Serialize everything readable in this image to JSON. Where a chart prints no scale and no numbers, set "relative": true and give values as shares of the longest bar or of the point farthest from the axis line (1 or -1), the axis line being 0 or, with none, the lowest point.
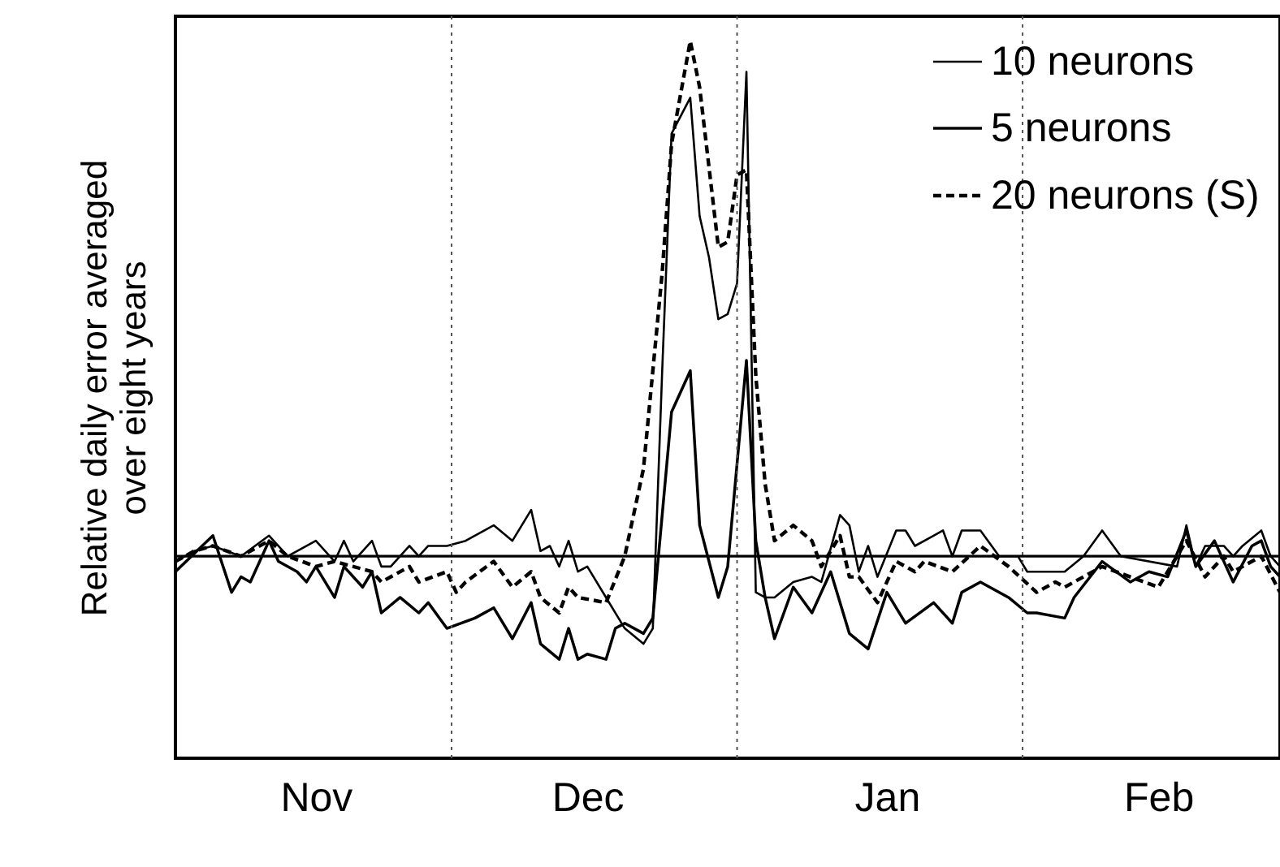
{
  "chart_data": {
    "type": "line",
    "relative": true,
    "ylabel": "Relative daily error averaged\nover eight years",
    "legend": "top right",
    "categories": [
      null,
      null,
      null,
      null,
      null,
      null,
      null,
      null,
      null,
      null,
      null,
      null,
      null,
      null,
      null,
      "Nov",
      null,
      null,
      null,
      null,
      null,
      null,
      null,
      null,
      null,
      null,
      null,
      null,
      null,
      null,
      null,
      null,
      null,
      null,
      null,
      null,
      null,
      null,
      null,
      null,
      null,
      null,
      null,
      null,
      "Dec",
      null,
      null,
      null,
      null,
      null,
      null,
      null,
      null,
      null,
      null,
      null,
      null,
      null,
      null,
      null,
      null,
      null,
      null,
      null,
      null,
      null,
      null,
      null,
      null,
      null,
      null,
      null,
      null,
      null,
      null,
      null,
      "Jan",
      null,
      null,
      null,
      null,
      null,
      null,
      null,
      null,
      null,
      null,
      null,
      null,
      null,
      null,
      null,
      null,
      null,
      null,
      null,
      null,
      null,
      null,
      null,
      null,
      null,
      null,
      null,
      null,
      "Feb",
      null,
      null,
      null,
      null,
      null,
      null,
      null,
      null,
      null,
      null,
      null,
      null,
      null
    ],
    "ref_lines": [
      {
        "axis": "y",
        "value": 0,
        "color": "#000000",
        "line_style": "solid"
      }
    ],
    "series": [
      {
        "name": "10 neurons",
        "color": "#000000",
        "line_style": "solid",
        "values": [
          -0.01,
          null,
          0.01,
          null,
          0.02,
          null,
          null,
          0.0,
          null,
          null,
          0.04,
          null,
          0.0,
          null,
          null,
          0.03,
          null,
          -0.01,
          0.03,
          -0.01,
          null,
          0.03,
          -0.02,
          -0.02,
          null,
          0.02,
          0.0,
          0.02,
          null,
          0.02,
          null,
          0.03,
          null,
          null,
          0.06,
          null,
          0.03,
          null,
          0.09,
          0.01,
          0.02,
          -0.02,
          0.03,
          -0.03,
          -0.02,
          null,
          -0.08,
          null,
          -0.14,
          null,
          -0.17,
          -0.14,
          0.36,
          0.82,
          null,
          0.89,
          0.66,
          0.58,
          0.46,
          0.47,
          0.53,
          0.94,
          -0.07,
          -0.08,
          -0.08,
          null,
          -0.05,
          null,
          -0.04,
          -0.05,
          null,
          0.08,
          0.06,
          -0.03,
          0.02,
          -0.04,
          null,
          0.05,
          0.05,
          0.02,
          null,
          0.04,
          0.05,
          0.0,
          0.05,
          null,
          0.05,
          null,
          0.0,
          0.0,
          0.0,
          -0.03,
          null,
          null,
          -0.03,
          -0.03,
          null,
          0.0,
          null,
          0.05,
          null,
          0.0,
          null,
          null,
          null,
          null,
          null,
          -0.02,
          0.06,
          -0.02,
          0.02,
          null,
          0.02,
          0.0,
          0.02,
          null,
          0.05,
          0.0,
          -0.02
        ]
      },
      {
        "name": "5 neurons",
        "color": "#000000",
        "line_style": "solid",
        "values": [
          -0.03,
          null,
          null,
          null,
          0.04,
          null,
          -0.07,
          -0.04,
          -0.05,
          null,
          0.03,
          -0.01,
          null,
          -0.03,
          -0.05,
          -0.02,
          null,
          -0.08,
          -0.02,
          null,
          -0.06,
          -0.03,
          -0.11,
          null,
          -0.08,
          null,
          -0.11,
          -0.09,
          null,
          -0.14,
          null,
          null,
          -0.12,
          null,
          -0.1,
          null,
          -0.16,
          null,
          -0.09,
          -0.17,
          null,
          -0.2,
          -0.14,
          -0.2,
          -0.19,
          null,
          -0.2,
          -0.14,
          -0.13,
          null,
          -0.15,
          -0.12,
          null,
          0.28,
          null,
          0.36,
          0.06,
          null,
          -0.08,
          -0.02,
          null,
          0.38,
          0.03,
          -0.08,
          -0.16,
          null,
          -0.06,
          null,
          -0.11,
          null,
          -0.03,
          null,
          -0.15,
          null,
          -0.18,
          null,
          -0.07,
          null,
          -0.13,
          null,
          null,
          -0.09,
          null,
          -0.13,
          -0.07,
          null,
          -0.05,
          null,
          null,
          -0.08,
          null,
          -0.11,
          -0.11,
          null,
          null,
          -0.12,
          -0.08,
          null,
          null,
          -0.01,
          null,
          null,
          -0.05,
          null,
          -0.03,
          null,
          -0.04,
          null,
          0.05,
          -0.02,
          null,
          0.03,
          null,
          -0.05,
          null,
          0.02,
          0.03,
          -0.02,
          -0.04
        ]
      },
      {
        "name": "20 neurons (S)",
        "color": "#000000",
        "line_style": "dashed",
        "values": [
          -0.01,
          null,
          0.01,
          null,
          0.02,
          null,
          null,
          0.0,
          null,
          null,
          0.03,
          null,
          0.0,
          null,
          null,
          -0.02,
          null,
          -0.01,
          null,
          null,
          null,
          -0.03,
          -0.05,
          null,
          null,
          -0.02,
          -0.05,
          null,
          null,
          -0.03,
          -0.07,
          -0.05,
          null,
          null,
          -0.01,
          null,
          -0.06,
          null,
          -0.03,
          -0.08,
          null,
          -0.11,
          -0.06,
          -0.08,
          null,
          null,
          -0.09,
          null,
          0.0,
          null,
          0.17,
          null,
          0.55,
          0.8,
          null,
          1.0,
          0.91,
          null,
          0.6,
          0.61,
          0.74,
          0.75,
          0.35,
          0.14,
          0.03,
          null,
          0.06,
          null,
          0.03,
          -0.02,
          null,
          0.04,
          -0.04,
          -0.04,
          null,
          -0.09,
          null,
          -0.01,
          null,
          -0.03,
          -0.01,
          null,
          null,
          -0.03,
          null,
          null,
          0.02,
          null,
          null,
          -0.02,
          null,
          null,
          -0.07,
          null,
          -0.05,
          -0.06,
          null,
          null,
          null,
          -0.02,
          null,
          null,
          -0.04,
          null,
          null,
          -0.06,
          null,
          null,
          0.03,
          null,
          -0.04,
          null,
          0.0,
          -0.03,
          null,
          null,
          0.0,
          null,
          -0.07
        ]
      }
    ]
  }
}
